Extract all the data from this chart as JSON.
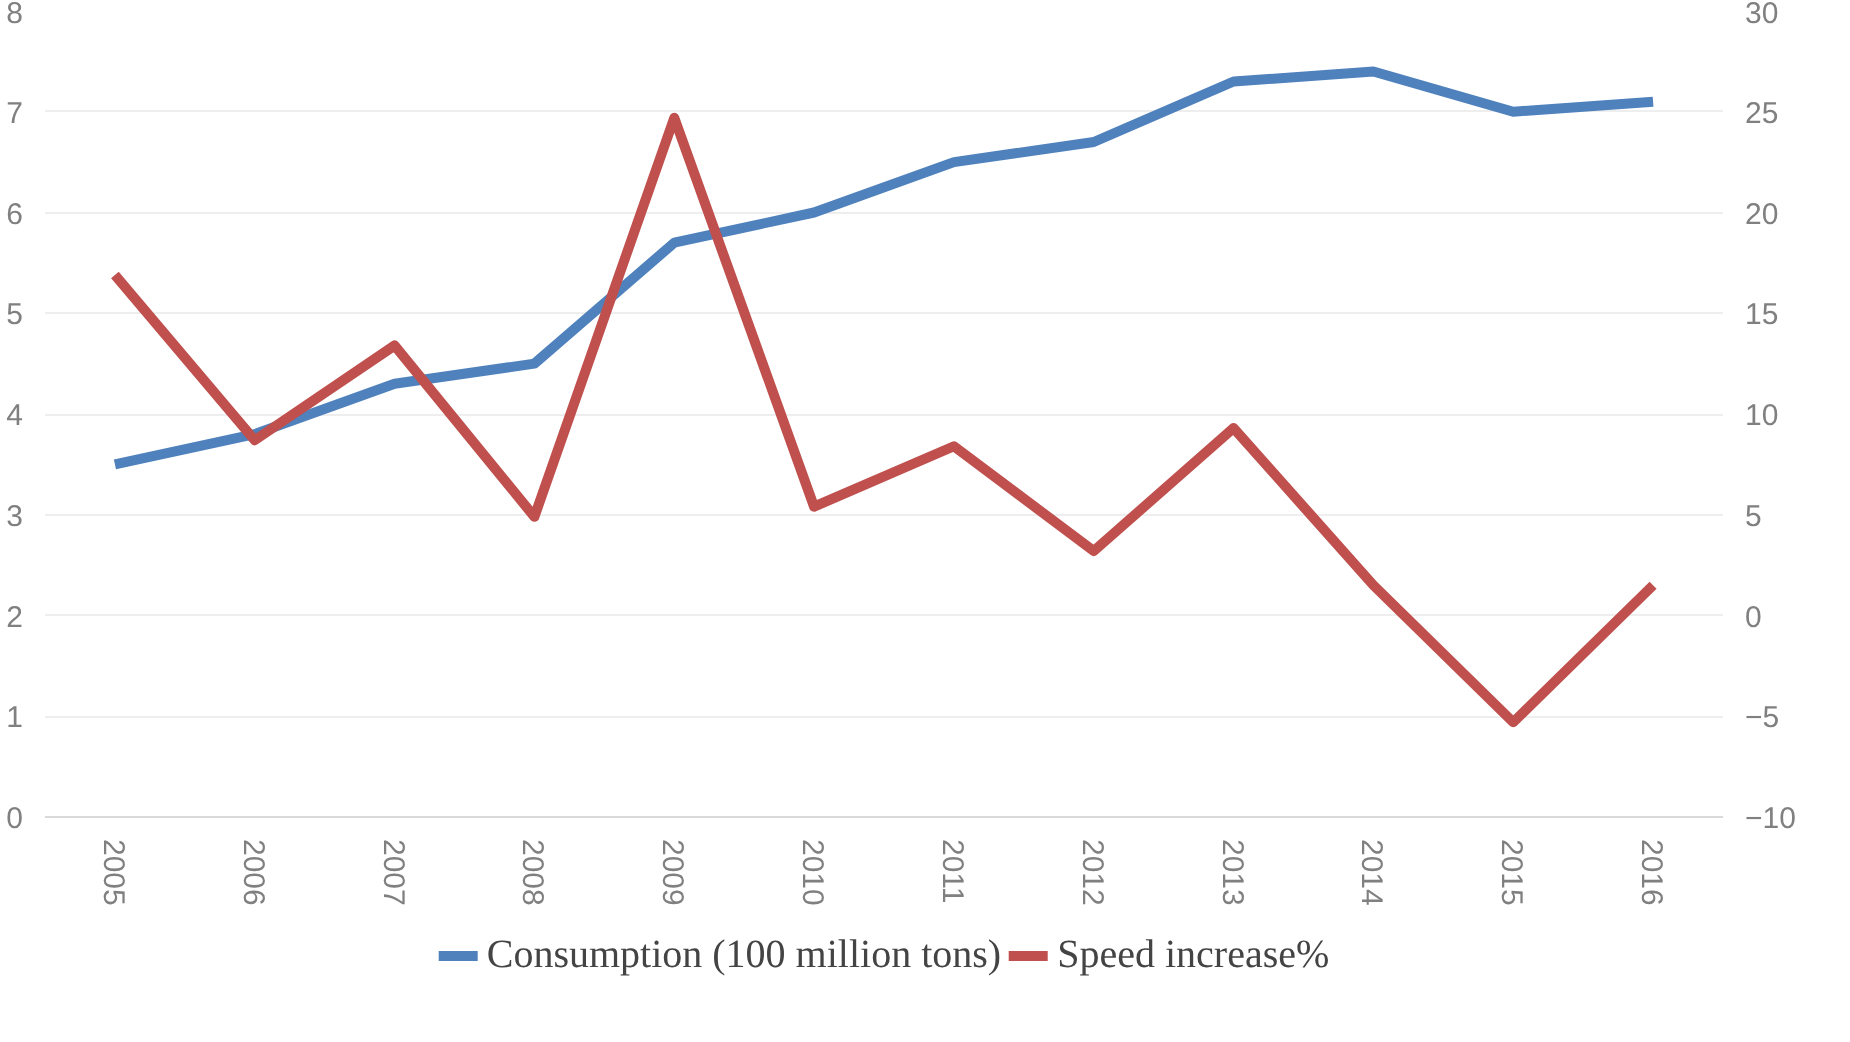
{
  "chart_data": {
    "type": "line",
    "categories": [
      "2005",
      "2006",
      "2007",
      "2008",
      "2009",
      "2010",
      "2011",
      "2012",
      "2013",
      "2014",
      "2015",
      "2016"
    ],
    "series": [
      {
        "name": "Consumption (100 million tons)",
        "color": "#4f81bd",
        "values": [
          3.5,
          3.8,
          4.3,
          4.5,
          5.7,
          6.0,
          6.5,
          6.7,
          7.3,
          7.4,
          7.0,
          7.1
        ]
      },
      {
        "name": "Speed increase%",
        "color": "#c0504d",
        "axis": "y2",
        "values": [
          16.9,
          8.7,
          13.4,
          4.9,
          24.7,
          5.4,
          8.4,
          3.2,
          9.3,
          1.5,
          -5.3,
          1.5
        ]
      }
    ],
    "ylim": [
      0,
      8
    ],
    "yticks": [
      0,
      1,
      2,
      3,
      4,
      5,
      6,
      7,
      8
    ],
    "y2lim": [
      -10,
      30
    ],
    "y2ticks": [
      -10,
      -5,
      0,
      5,
      10,
      15,
      20,
      25,
      30
    ],
    "grid": "y",
    "legend": "bottom",
    "marker": "none",
    "line_style": "solid"
  }
}
